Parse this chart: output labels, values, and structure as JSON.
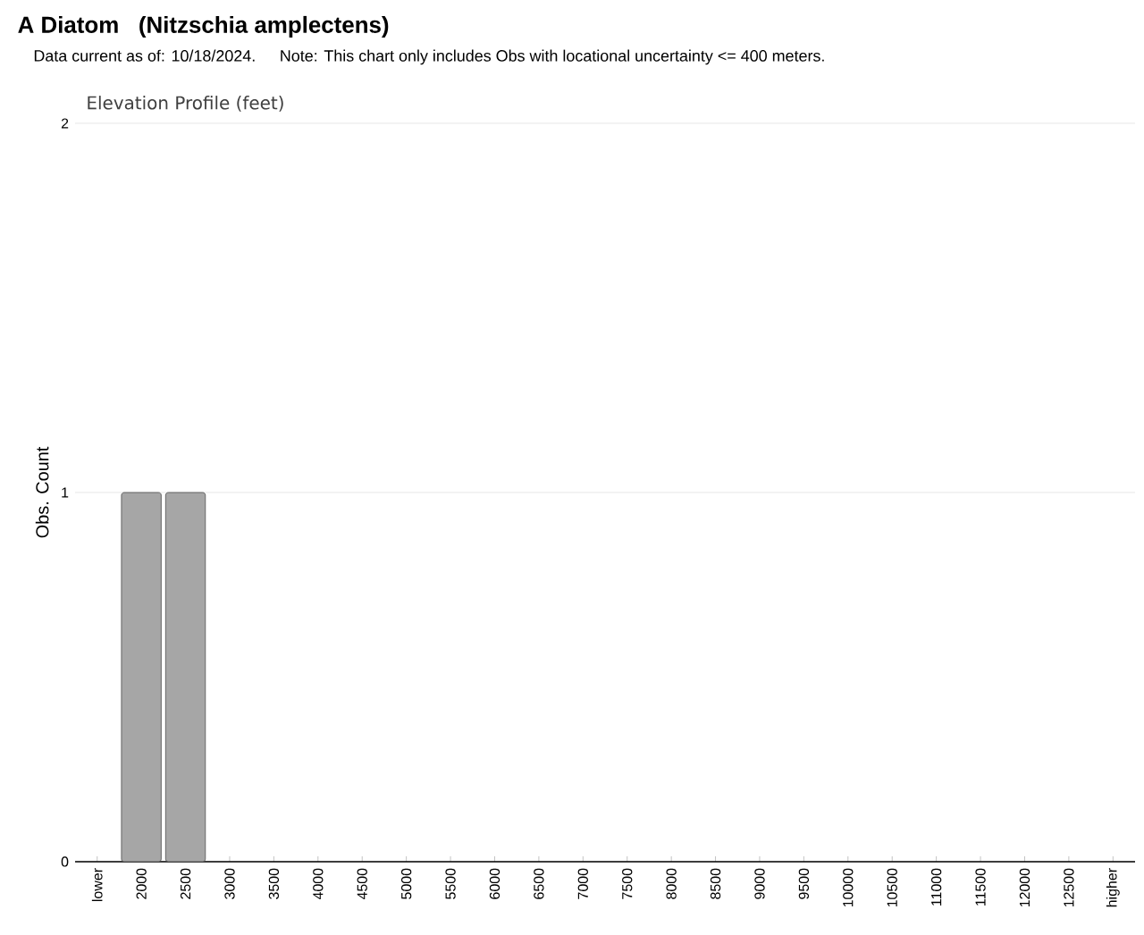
{
  "chart_data": {
    "type": "bar",
    "title": "A Diatom   (Nitzschia amplectens)",
    "subtitle": "Data current as of: 10/18/2024.    Note: This chart only includes Obs with locational uncertainty <= 400 meters.",
    "annotations": [
      "Elevation Profile (feet)"
    ],
    "ylabel": "Obs. Count",
    "categories": [
      "lower",
      "2000",
      "2500",
      "3000",
      "3500",
      "4000",
      "4500",
      "5000",
      "5500",
      "6000",
      "6500",
      "7000",
      "7500",
      "8000",
      "8500",
      "9000",
      "9500",
      "10000",
      "10500",
      "11000",
      "11500",
      "12000",
      "12500",
      "higher"
    ],
    "values": [
      0,
      1,
      1,
      0,
      0,
      0,
      0,
      0,
      0,
      0,
      0,
      0,
      0,
      0,
      0,
      0,
      0,
      0,
      0,
      0,
      0,
      0,
      0,
      0
    ],
    "color": "#a6a6a6",
    "ylim": [
      0,
      2
    ],
    "yticks": [
      0,
      1,
      2
    ],
    "grid": "y"
  }
}
